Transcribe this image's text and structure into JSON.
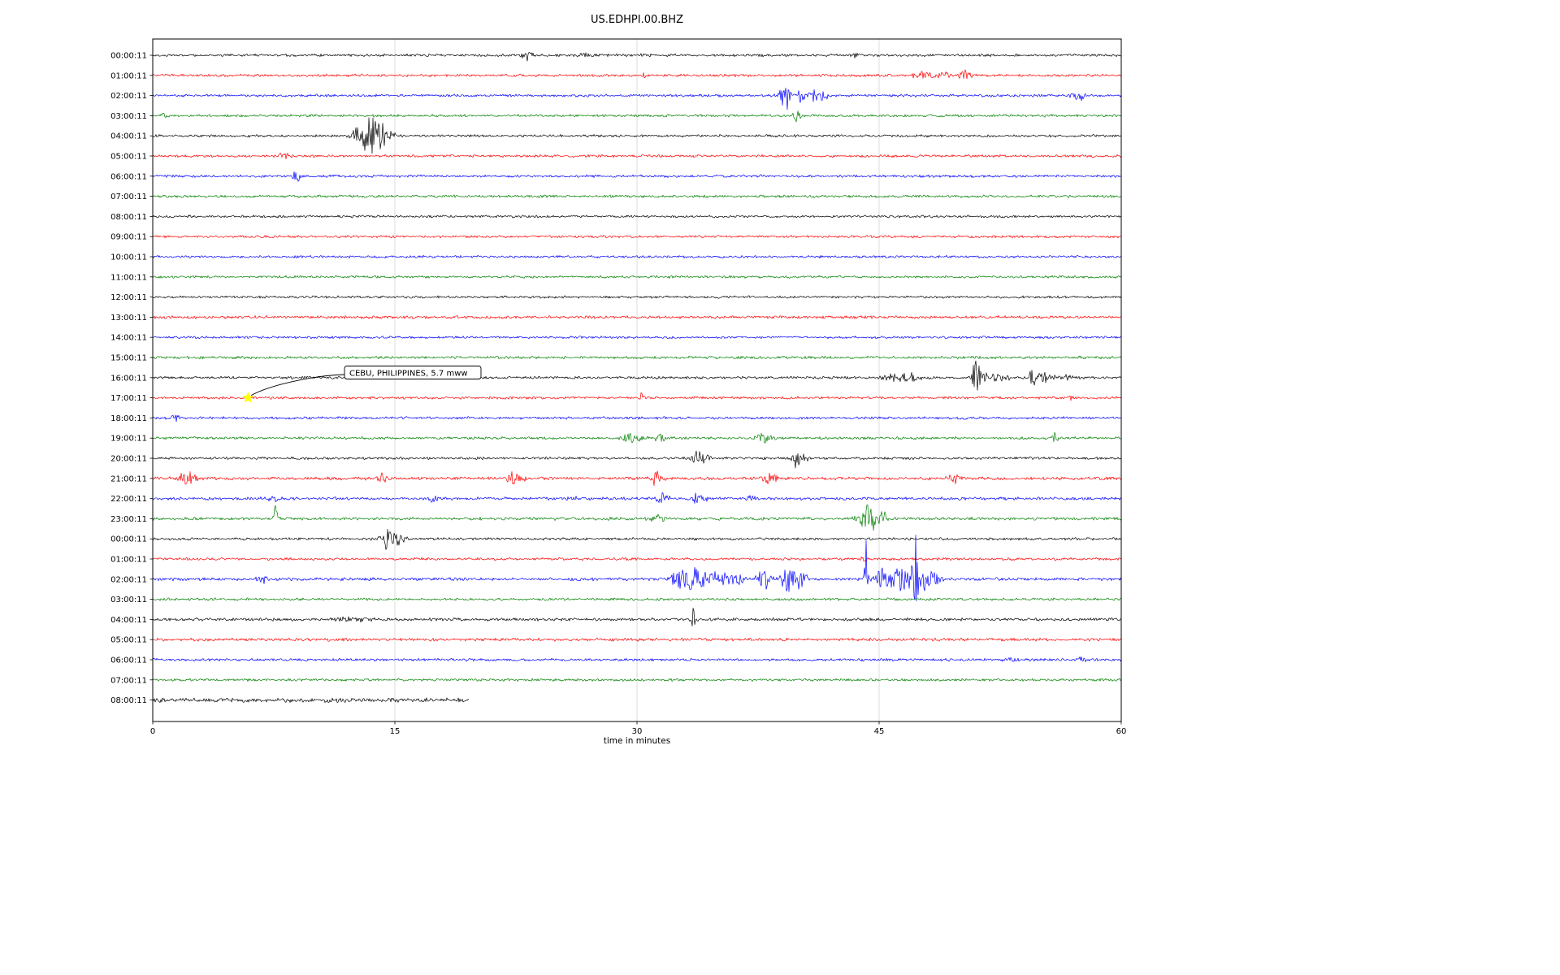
{
  "chart_data": {
    "type": "line",
    "variant": "helicorder-dayplot",
    "title": "US.EDHPI.00.BHZ",
    "x_axis": {
      "label": "time in minutes",
      "min": 0,
      "max": 60,
      "ticks": [
        0,
        15,
        30,
        45,
        60
      ],
      "gridlines": [
        15,
        30,
        45
      ]
    },
    "trace_color_cycle": [
      "#000000",
      "#ff0000",
      "#0000ff",
      "#008000"
    ],
    "annotation": {
      "text": "CEBU, PHILIPPINES, 5.7 mww",
      "row_index": 17,
      "minute": 5.9,
      "marker": "star",
      "marker_color": "#ffff00"
    },
    "rows": [
      {
        "label": "00:00:11",
        "color": "#000000",
        "base": 1.9,
        "events": [
          {
            "t": 23.2,
            "a": 8,
            "w": 0.2
          },
          {
            "t": 26.7,
            "a": 3,
            "w": 0.3
          },
          {
            "t": 30.5,
            "a": 2.5,
            "w": 0.3
          },
          {
            "t": 43.5,
            "a": 3,
            "w": 0.2
          }
        ]
      },
      {
        "label": "01:00:11",
        "color": "#ff0000",
        "base": 1.9,
        "events": [
          {
            "t": 30.5,
            "a": 6,
            "w": 0.1
          },
          {
            "t": 47.8,
            "a": 4,
            "w": 0.6
          },
          {
            "t": 49.0,
            "a": 4,
            "w": 0.4
          },
          {
            "t": 50.3,
            "a": 7,
            "w": 0.25
          }
        ]
      },
      {
        "label": "02:00:11",
        "color": "#0000ff",
        "base": 1.9,
        "events": [
          {
            "t": 39.0,
            "a": 9,
            "w": 0.2
          },
          {
            "t": 39.35,
            "a": 16,
            "w": 0.12
          },
          {
            "t": 40.2,
            "a": 11,
            "w": 0.15
          },
          {
            "t": 41.0,
            "a": 8,
            "w": 0.25
          },
          {
            "t": 41.5,
            "a": 5,
            "w": 0.3
          },
          {
            "t": 57.3,
            "a": 6,
            "w": 0.35
          }
        ]
      },
      {
        "label": "03:00:11",
        "color": "#008000",
        "base": 1.9,
        "events": [
          {
            "t": 0.6,
            "a": 18,
            "w": 0.1
          },
          {
            "t": 39.9,
            "a": 6,
            "w": 0.2
          }
        ]
      },
      {
        "label": "04:00:11",
        "color": "#000000",
        "base": 1.9,
        "events": [
          {
            "t": 12.7,
            "a": 12,
            "w": 0.3
          },
          {
            "t": 13.0,
            "a": 8,
            "w": 0.3
          },
          {
            "t": 13.55,
            "a": 24,
            "w": 0.25
          },
          {
            "t": 13.9,
            "a": 12,
            "w": 0.4
          },
          {
            "t": 14.3,
            "a": 8,
            "w": 0.5
          }
        ]
      },
      {
        "label": "05:00:11",
        "color": "#ff0000",
        "base": 1.9,
        "events": [
          {
            "t": 8.3,
            "a": 3,
            "w": 0.5
          }
        ]
      },
      {
        "label": "06:00:11",
        "color": "#0000ff",
        "base": 1.9,
        "events": [
          {
            "t": 8.9,
            "a": 7,
            "w": 0.2
          }
        ]
      },
      {
        "label": "07:00:11",
        "color": "#008000",
        "base": 1.9,
        "events": []
      },
      {
        "label": "08:00:11",
        "color": "#000000",
        "base": 1.8,
        "events": []
      },
      {
        "label": "09:00:11",
        "color": "#ff0000",
        "base": 1.8,
        "events": []
      },
      {
        "label": "10:00:11",
        "color": "#0000ff",
        "base": 1.8,
        "events": []
      },
      {
        "label": "11:00:11",
        "color": "#008000",
        "base": 1.8,
        "events": []
      },
      {
        "label": "12:00:11",
        "color": "#000000",
        "base": 1.8,
        "events": []
      },
      {
        "label": "13:00:11",
        "color": "#ff0000",
        "base": 2.1,
        "events": []
      },
      {
        "label": "14:00:11",
        "color": "#0000ff",
        "base": 1.8,
        "events": []
      },
      {
        "label": "15:00:11",
        "color": "#008000",
        "base": 2.0,
        "events": []
      },
      {
        "label": "16:00:11",
        "color": "#000000",
        "base": 1.9,
        "events": [
          {
            "t": 46.2,
            "a": 7,
            "w": 0.6
          },
          {
            "t": 46.9,
            "a": 6,
            "w": 0.4
          },
          {
            "t": 51.0,
            "a": 26,
            "w": 0.12
          },
          {
            "t": 51.3,
            "a": 8,
            "w": 0.4
          },
          {
            "t": 52.5,
            "a": 5,
            "w": 0.5
          },
          {
            "t": 54.5,
            "a": 8,
            "w": 0.25
          },
          {
            "t": 55.2,
            "a": 6,
            "w": 0.4
          },
          {
            "t": 56.8,
            "a": 4,
            "w": 0.3
          }
        ]
      },
      {
        "label": "17:00:11",
        "color": "#ff0000",
        "base": 1.9,
        "events": [
          {
            "t": 30.3,
            "a": 6,
            "w": 0.1
          },
          {
            "t": 57.0,
            "a": 3,
            "w": 0.2
          }
        ]
      },
      {
        "label": "18:00:11",
        "color": "#0000ff",
        "base": 1.9,
        "events": [
          {
            "t": 1.4,
            "a": 4,
            "w": 0.25
          }
        ]
      },
      {
        "label": "19:00:11",
        "color": "#008000",
        "base": 1.9,
        "events": [
          {
            "t": 29.5,
            "a": 8,
            "w": 0.3
          },
          {
            "t": 30.1,
            "a": 4,
            "w": 0.3
          },
          {
            "t": 31.4,
            "a": 5,
            "w": 0.3
          },
          {
            "t": 37.9,
            "a": 6,
            "w": 0.4
          },
          {
            "t": 55.9,
            "a": 7,
            "w": 0.12
          }
        ]
      },
      {
        "label": "20:00:11",
        "color": "#000000",
        "base": 1.9,
        "events": [
          {
            "t": 33.7,
            "a": 11,
            "w": 0.2
          },
          {
            "t": 34.1,
            "a": 7,
            "w": 0.3
          },
          {
            "t": 39.9,
            "a": 11,
            "w": 0.18
          },
          {
            "t": 40.2,
            "a": 5,
            "w": 0.3
          }
        ]
      },
      {
        "label": "21:00:11",
        "color": "#ff0000",
        "base": 2.2,
        "events": [
          {
            "t": 2.2,
            "a": 9,
            "w": 0.4
          },
          {
            "t": 14.2,
            "a": 6,
            "w": 0.2
          },
          {
            "t": 22.3,
            "a": 7,
            "w": 0.3
          },
          {
            "t": 22.9,
            "a": 5,
            "w": 0.2
          },
          {
            "t": 31.2,
            "a": 8,
            "w": 0.3
          },
          {
            "t": 38.2,
            "a": 6,
            "w": 0.4
          },
          {
            "t": 49.7,
            "a": 5,
            "w": 0.3
          }
        ]
      },
      {
        "label": "22:00:11",
        "color": "#0000ff",
        "base": 2.2,
        "events": [
          {
            "t": 7.5,
            "a": 4,
            "w": 0.25
          },
          {
            "t": 17.4,
            "a": 4,
            "w": 0.2
          },
          {
            "t": 26.0,
            "a": 3,
            "w": 0.2
          },
          {
            "t": 31.6,
            "a": 6,
            "w": 0.3
          },
          {
            "t": 33.8,
            "a": 6,
            "w": 0.35
          },
          {
            "t": 37.0,
            "a": 3,
            "w": 0.3
          }
        ]
      },
      {
        "label": "23:00:11",
        "color": "#008000",
        "base": 2.2,
        "events": [
          {
            "t": 7.6,
            "a": 14,
            "w": 0.1
          },
          {
            "t": 31.3,
            "a": 5,
            "w": 0.3
          },
          {
            "t": 44.2,
            "a": 13,
            "w": 0.4
          },
          {
            "t": 44.7,
            "a": 10,
            "w": 0.35
          },
          {
            "t": 45.1,
            "a": 7,
            "w": 0.3
          }
        ]
      },
      {
        "label": "00:00:11",
        "color": "#000000",
        "base": 1.9,
        "events": [
          {
            "t": 14.5,
            "a": 11,
            "w": 0.3
          },
          {
            "t": 15.0,
            "a": 7,
            "w": 0.4
          },
          {
            "t": 15.5,
            "a": 4,
            "w": 0.3
          }
        ]
      },
      {
        "label": "01:00:11",
        "color": "#ff0000",
        "base": 1.9,
        "events": [
          {
            "t": 44.0,
            "a": 3,
            "w": 0.15
          }
        ]
      },
      {
        "label": "02:00:11",
        "color": "#0000ff",
        "base": 2.2,
        "events": [
          {
            "t": 6.8,
            "a": 5,
            "w": 0.3
          },
          {
            "t": 32.8,
            "a": 11,
            "w": 0.5
          },
          {
            "t": 33.4,
            "a": 14,
            "w": 0.3
          },
          {
            "t": 34.3,
            "a": 10,
            "w": 0.6
          },
          {
            "t": 35.3,
            "a": 8,
            "w": 0.5
          },
          {
            "t": 36.3,
            "a": 6,
            "w": 0.4
          },
          {
            "t": 37.8,
            "a": 11,
            "w": 0.35
          },
          {
            "t": 39.4,
            "a": 13,
            "w": 0.45
          },
          {
            "t": 40.2,
            "a": 8,
            "w": 0.3
          },
          {
            "t": 44.2,
            "a": 45,
            "w": 0.07
          },
          {
            "t": 45.3,
            "a": 11,
            "w": 0.5
          },
          {
            "t": 46.2,
            "a": 13,
            "w": 0.4
          },
          {
            "t": 47.0,
            "a": 14,
            "w": 0.3
          },
          {
            "t": 47.3,
            "a": 55,
            "w": 0.07
          },
          {
            "t": 47.9,
            "a": 12,
            "w": 0.4
          },
          {
            "t": 48.4,
            "a": 8,
            "w": 0.3
          }
        ]
      },
      {
        "label": "03:00:11",
        "color": "#008000",
        "base": 1.9,
        "events": []
      },
      {
        "label": "04:00:11",
        "color": "#000000",
        "base": 2.2,
        "events": [
          {
            "t": 12.3,
            "a": 3,
            "w": 0.8
          },
          {
            "t": 33.5,
            "a": 14,
            "w": 0.08
          }
        ]
      },
      {
        "label": "05:00:11",
        "color": "#ff0000",
        "base": 2.2,
        "events": []
      },
      {
        "label": "06:00:11",
        "color": "#0000ff",
        "base": 1.9,
        "events": [
          {
            "t": 53.3,
            "a": 3,
            "w": 0.4
          },
          {
            "t": 57.5,
            "a": 3,
            "w": 0.3
          }
        ]
      },
      {
        "label": "07:00:11",
        "color": "#008000",
        "base": 1.9,
        "events": []
      },
      {
        "label": "08:00:11",
        "color": "#000000",
        "base": 3.2,
        "end": 19.6,
        "events": []
      }
    ]
  }
}
